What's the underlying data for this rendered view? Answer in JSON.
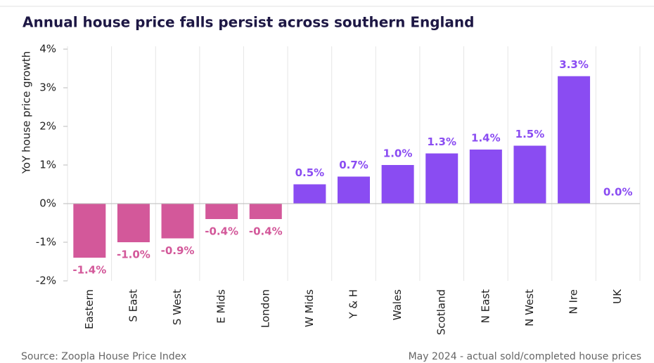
{
  "chart_data": {
    "type": "bar",
    "title": "Annual house price falls persist across southern England",
    "ylabel": "YoY house price growth",
    "source": "Source: Zoopla House Price Index",
    "note": "May 2024 - actual sold/completed house prices",
    "categories": [
      "Eastern",
      "S East",
      "S West",
      "E Mids",
      "London",
      "W Mids",
      "Y & H",
      "Wales",
      "Scotland",
      "N East",
      "N West",
      "N Ire",
      "UK"
    ],
    "values": [
      -1.4,
      -1.0,
      -0.9,
      -0.4,
      -0.4,
      0.5,
      0.7,
      1.0,
      1.3,
      1.4,
      1.5,
      3.3,
      0.0
    ],
    "value_labels": [
      "-1.4%",
      "-1.0%",
      "-0.9%",
      "-0.4%",
      "-0.4%",
      "0.5%",
      "0.7%",
      "1.0%",
      "1.3%",
      "1.4%",
      "1.5%",
      "3.3%",
      "0.0%"
    ],
    "colors": [
      "#d3589a",
      "#d3589a",
      "#d3589a",
      "#d3589a",
      "#d3589a",
      "#8a4cf2",
      "#8a4cf2",
      "#8a4cf2",
      "#8a4cf2",
      "#8a4cf2",
      "#8a4cf2",
      "#8a4cf2",
      "#8a4cf2"
    ],
    "ylim": [
      -2,
      4
    ],
    "yticks": [
      {
        "value": -2,
        "label": "-2%"
      },
      {
        "value": -1,
        "label": "-1%"
      },
      {
        "value": 0,
        "label": "0%"
      },
      {
        "value": 1,
        "label": "1%"
      },
      {
        "value": 2,
        "label": "2%"
      },
      {
        "value": 3,
        "label": "3%"
      },
      {
        "value": 4,
        "label": "4%"
      }
    ],
    "grid": false
  }
}
